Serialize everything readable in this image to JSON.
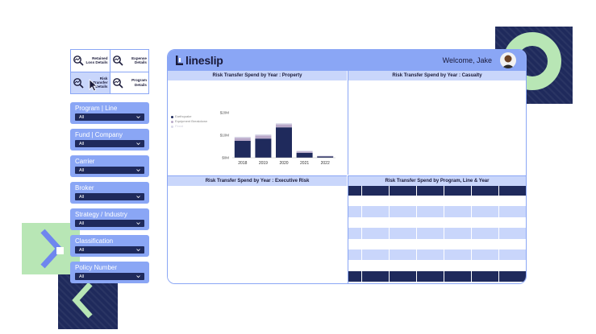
{
  "colors": {
    "accent": "#8aa6f5",
    "navy": "#1f2a5c",
    "light": "#c9d6fb",
    "green": "#b8e6b5"
  },
  "report_nav": [
    {
      "label": "Retained Loss Details",
      "icon": "chart-search-icon"
    },
    {
      "label": "Expense Details",
      "icon": "chart-search-icon"
    },
    {
      "label": "Risk Transfer Details",
      "icon": "chart-search-icon",
      "active": true
    },
    {
      "label": "Program Details",
      "icon": "chart-search-icon"
    }
  ],
  "filters": [
    {
      "title": "Program | Line",
      "value": "All"
    },
    {
      "title": "Fund | Company",
      "value": "All"
    },
    {
      "title": "Carrier",
      "value": "All"
    },
    {
      "title": "Broker",
      "value": "All"
    },
    {
      "title": "Strategy / Industry",
      "value": "All"
    },
    {
      "title": "Classification",
      "value": "All"
    },
    {
      "title": "Policy Number",
      "value": "All"
    }
  ],
  "header": {
    "logo": "lineslip",
    "welcome": "Welcome, Jake"
  },
  "panels": {
    "property": "Risk Transfer Spend by Year : Property",
    "casualty": "Risk Transfer Spend by Year : Casualty",
    "executive": "Risk Transfer Spend by Year : Executive Risk",
    "program": "Risk Transfer Spend by Program, Line & Year"
  },
  "chart_data": {
    "type": "bar",
    "categories": [
      "2018",
      "2019",
      "2020",
      "2021",
      "2022"
    ],
    "series": [
      {
        "name": "Earthquake",
        "values": [
          7.5,
          8.5,
          13.5,
          2.2,
          0.6
        ]
      },
      {
        "name": "Equipment Breakdown",
        "values": [
          1.3,
          1.4,
          1.3,
          0.6,
          0.2
        ]
      },
      {
        "name": "Flood",
        "values": [
          0.5,
          0.5,
          0.5,
          0.3,
          0.1
        ]
      }
    ],
    "series_colors": [
      "#1f2a5c",
      "#b9a9c9",
      "#d8d8e8"
    ],
    "yticks": [
      "$20M",
      "$10M",
      "$0M"
    ],
    "ylim": [
      0,
      20
    ]
  }
}
